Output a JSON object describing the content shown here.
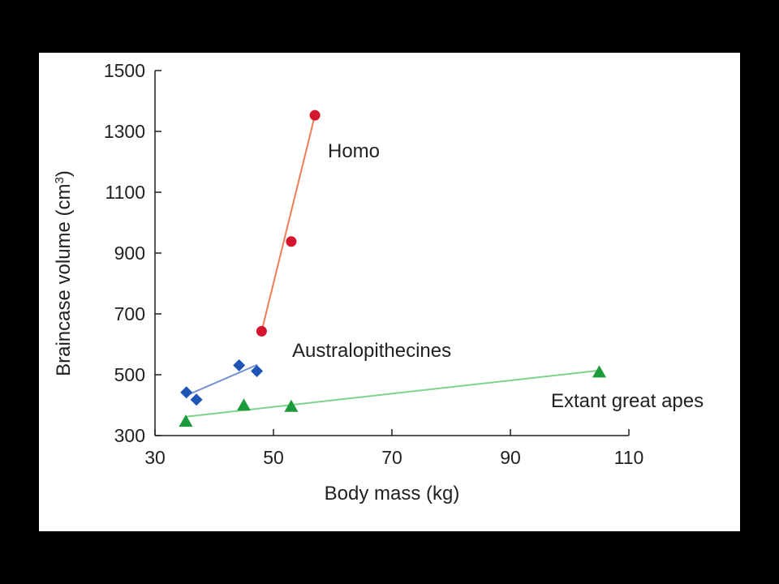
{
  "chart_data": {
    "type": "scatter",
    "xlabel": "Body mass (kg)",
    "ylabel": "Braincase volume (cm",
    "ylabel_sup": "3",
    "ylabel_close": ")",
    "xlim": [
      30,
      110
    ],
    "ylim": [
      300,
      1500
    ],
    "xticks": [
      30,
      50,
      70,
      90,
      110
    ],
    "yticks": [
      300,
      500,
      700,
      900,
      1100,
      1300,
      1500
    ],
    "grid": false,
    "series": [
      {
        "name": "Homo",
        "marker": "circle",
        "color": "#d4162e",
        "line_color": "#ef7d53",
        "points": [
          [
            48,
            643
          ],
          [
            53,
            938
          ],
          [
            57,
            1353
          ]
        ],
        "fit": [
          [
            48,
            643
          ],
          [
            57,
            1353
          ]
        ]
      },
      {
        "name": "Australopithecines",
        "marker": "diamond",
        "color": "#1f55b5",
        "line_color": "#7391d1",
        "points": [
          [
            35.3,
            442
          ],
          [
            37,
            418
          ],
          [
            44.2,
            531
          ],
          [
            47.2,
            512
          ]
        ],
        "fit": [
          [
            35.3,
            432
          ],
          [
            47.3,
            533
          ]
        ]
      },
      {
        "name": "Extant great apes",
        "marker": "triangle",
        "color": "#1a9a3a",
        "line_color": "#80d38a",
        "points": [
          [
            35.2,
            345
          ],
          [
            45,
            398
          ],
          [
            53,
            394
          ],
          [
            105,
            507
          ]
        ],
        "fit": [
          [
            35.2,
            362
          ],
          [
            105,
            514
          ]
        ]
      }
    ]
  }
}
